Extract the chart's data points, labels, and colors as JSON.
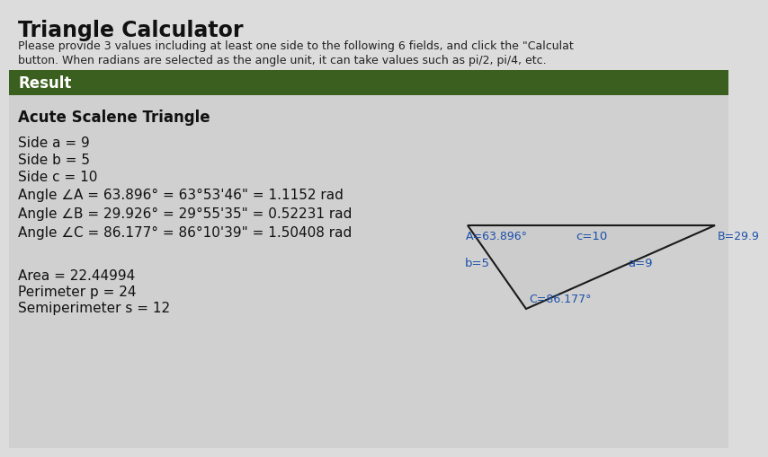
{
  "title": "Triangle Calculator",
  "subtitle_line1": "Please provide 3 values including at least one side to the following 6 fields, and click the \"Calculat",
  "subtitle_line2": "button. When radians are selected as the angle unit, it can take values such as pi/2, pi/4, etc.",
  "result_label": "Result",
  "result_bar_color": "#3a5f1e",
  "result_bar_text_color": "#ffffff",
  "triangle_type": "Acute Scalene Triangle",
  "sides": [
    "Side a = 9",
    "Side b = 5",
    "Side c = 10"
  ],
  "angles": [
    "Angle ∠A = 63.896° = 63°53'46\" = 1.1152 rad",
    "Angle ∠B = 29.926° = 29°55'35\" = 0.52231 rad",
    "Angle ∠C = 86.177° = 86°10'39\" = 1.50408 rad"
  ],
  "area_line": "Area = 22.44994",
  "perimeter_line": "Perimeter p = 24",
  "semiperimeter_line": "Semiperimeter s = 12",
  "top_bg_color": "#dcdcdc",
  "result_bg_color": "#d0d0d0",
  "triangle_fill": "#cccccc",
  "triangle_edge": "#1a1a1a",
  "label_color": "#1a4faa",
  "label_A": "A=63.896°",
  "label_B": "B=29.9",
  "label_C": "C=86.177°",
  "label_a": "a=9",
  "label_b": "b=5",
  "label_c": "c=10",
  "tri_A": [
    510,
    248
  ],
  "tri_B": [
    785,
    248
  ],
  "tri_C": [
    575,
    155
  ]
}
